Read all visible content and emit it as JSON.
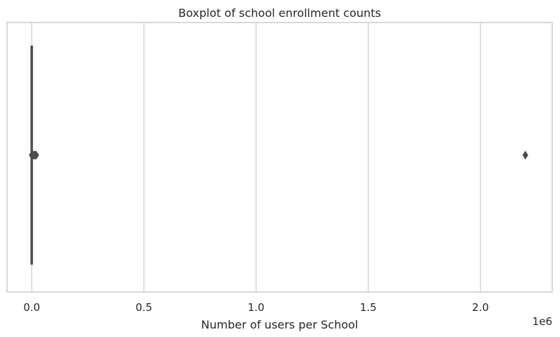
{
  "chart_data": {
    "type": "boxplot",
    "title": "Boxplot of school enrollment counts",
    "xlabel": "Number of users per School",
    "ylabel": "",
    "x_scale_label": "1e6",
    "xlim": [
      -0.11,
      2.32
    ],
    "x_ticks": [
      0.0,
      0.5,
      1.0,
      1.5,
      2.0
    ],
    "x_tick_labels": [
      "0.0",
      "0.5",
      "1.0",
      "1.5",
      "2.0"
    ],
    "grid": "vertical",
    "box": {
      "q1": 0.0,
      "median": 0.0,
      "q3": 0.0,
      "whisker_low": 0.0,
      "whisker_high": 0.0
    },
    "outliers": [
      0.0,
      0.004,
      0.008,
      0.012,
      0.016,
      0.02,
      2.2
    ],
    "colors": {
      "box": "#4d4d4d",
      "outlier": "#4d4d4d",
      "grid": "#d5d5d5",
      "frame": "#cccccc",
      "text": "#262626"
    }
  }
}
